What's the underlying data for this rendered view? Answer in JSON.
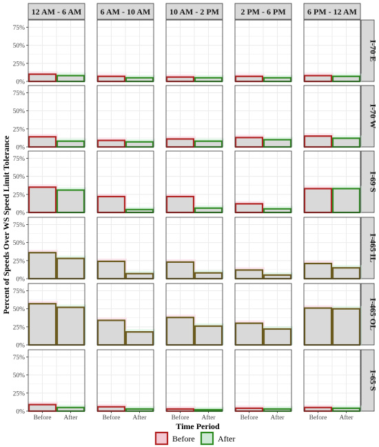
{
  "chart_data": {
    "type": "bar",
    "facet_columns": [
      "12 AM - 6 AM",
      "6 AM - 10 AM",
      "10 AM - 2 PM",
      "2 PM - 6 PM",
      "6 PM - 12 AM"
    ],
    "facet_rows": [
      "I-70 E",
      "I-70 W",
      "I-69 S",
      "I-465 IL",
      "I-465 OL",
      "I-65 S"
    ],
    "categories": [
      "Before",
      "After"
    ],
    "xlabel": "Time Period",
    "ylabel": "Percent of Speeds Over WS Speed Limit Tolerance",
    "ylim": [
      0,
      0.85
    ],
    "yticks": [
      0,
      0.25,
      0.5,
      0.75
    ],
    "ytick_labels": [
      "0%",
      "25%",
      "50%",
      "75%"
    ],
    "grid": true,
    "legend": {
      "position": "bottom",
      "title": "",
      "entries": [
        {
          "name": "Before",
          "border": "#b22222",
          "fill": "#f4c9d4"
        },
        {
          "name": "After",
          "border": "#2e8b22",
          "fill": "#cfead6"
        }
      ]
    },
    "values": {
      "I-70 E": {
        "12 AM - 6 AM": [
          0.1,
          0.08
        ],
        "6 AM - 10 AM": [
          0.07,
          0.05
        ],
        "10 AM - 2 PM": [
          0.06,
          0.05
        ],
        "2 PM - 6 PM": [
          0.07,
          0.05
        ],
        "6 PM - 12 AM": [
          0.08,
          0.07
        ]
      },
      "I-70 W": {
        "12 AM - 6 AM": [
          0.14,
          0.08
        ],
        "6 AM - 10 AM": [
          0.09,
          0.07
        ],
        "10 AM - 2 PM": [
          0.11,
          0.08
        ],
        "2 PM - 6 PM": [
          0.13,
          0.1
        ],
        "6 PM - 12 AM": [
          0.15,
          0.12
        ]
      },
      "I-69 S": {
        "12 AM - 6 AM": [
          0.35,
          0.31
        ],
        "6 AM - 10 AM": [
          0.22,
          0.04
        ],
        "10 AM - 2 PM": [
          0.22,
          0.06
        ],
        "2 PM - 6 PM": [
          0.12,
          0.05
        ],
        "6 PM - 12 AM": [
          0.33,
          0.33
        ]
      },
      "I-465 IL": {
        "12 AM - 6 AM": [
          0.36,
          0.28
        ],
        "6 AM - 10 AM": [
          0.24,
          0.07
        ],
        "10 AM - 2 PM": [
          0.23,
          0.08
        ],
        "2 PM - 6 PM": [
          0.12,
          0.05
        ],
        "6 PM - 12 AM": [
          0.21,
          0.15
        ]
      },
      "I-465 OL": {
        "12 AM - 6 AM": [
          0.57,
          0.52
        ],
        "6 AM - 10 AM": [
          0.34,
          0.18
        ],
        "10 AM - 2 PM": [
          0.38,
          0.26
        ],
        "2 PM - 6 PM": [
          0.3,
          0.22
        ],
        "6 PM - 12 AM": [
          0.51,
          0.5
        ]
      },
      "I-65 S": {
        "12 AM - 6 AM": [
          0.09,
          0.05
        ],
        "6 AM - 10 AM": [
          0.06,
          0.03
        ],
        "10 AM - 2 PM": [
          0.03,
          0.02
        ],
        "2 PM - 6 PM": [
          0.04,
          0.03
        ],
        "6 PM - 12 AM": [
          0.05,
          0.04
        ]
      }
    },
    "style": {
      "panel_border": "#333333",
      "strip_fill": "#d9d9d9",
      "grid_color": "#ebebeb",
      "bar_fill": "#d9d9d9",
      "before_border": "#b22222",
      "after_border": "#2e8b22",
      "mixed_border": "#6b5a1e",
      "before_highlight": "#f9d6e2",
      "after_highlight": "#d4f0dc"
    }
  }
}
